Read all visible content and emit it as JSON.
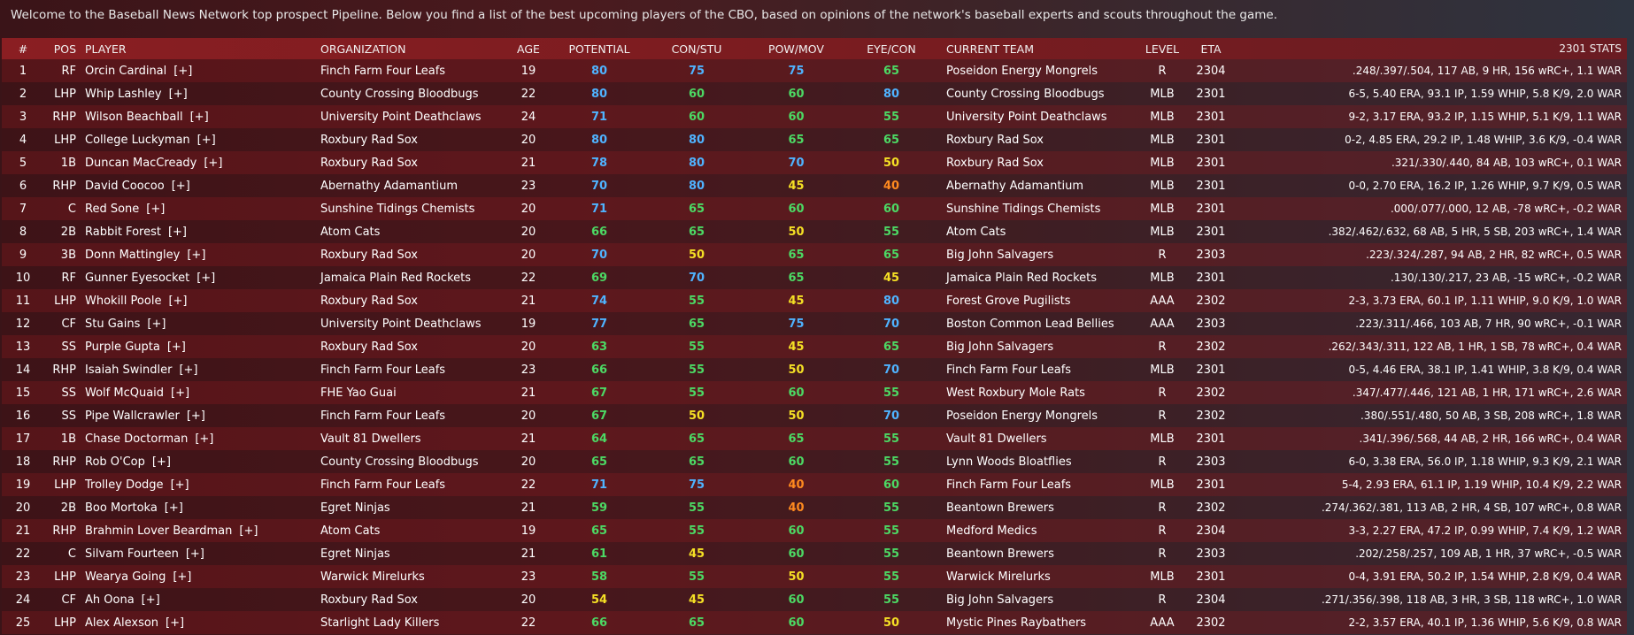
{
  "intro": "Welcome to the Baseball News Network top prospect Pipeline. Below you find a list of the best upcoming players of the CBO, based on opinions of the network's baseball experts and scouts throughout the game.",
  "columns": {
    "num": "#",
    "pos": "POS",
    "player": "PLAYER",
    "org": "ORGANIZATION",
    "age": "AGE",
    "potential": "POTENTIAL",
    "con_stu": "CON/STU",
    "pow_mov": "POW/MOV",
    "eye_con": "EYE/CON",
    "team": "CURRENT TEAM",
    "level": "LEVEL",
    "eta": "ETA",
    "stats": "2301 STATS"
  },
  "expand_label": "[+]",
  "rating_colors": {
    "80": "#4fb3ff",
    "75": "#4fb3ff",
    "70": "#4fb3ff",
    "65": "#4cd964",
    "60": "#4cd964",
    "55": "#4cd964",
    "50": "#f5e025",
    "45": "#f5e025",
    "40": "#ff8a1f"
  },
  "players": [
    {
      "num": "1",
      "pos": "RF",
      "name": "Orcin Cardinal",
      "org": "Finch Farm Four Leafs",
      "age": "19",
      "pot": "80",
      "con": "75",
      "pow": "75",
      "eye": "65",
      "team": "Poseidon Energy Mongrels",
      "level": "R",
      "eta": "2304",
      "stats": ".248/.397/.504, 117 AB, 9 HR, 156 wRC+, 1.1 WAR"
    },
    {
      "num": "2",
      "pos": "LHP",
      "name": "Whip Lashley",
      "org": "County Crossing Bloodbugs",
      "age": "22",
      "pot": "80",
      "con": "60",
      "pow": "60",
      "eye": "80",
      "team": "County Crossing Bloodbugs",
      "level": "MLB",
      "eta": "2301",
      "stats": "6-5, 5.40 ERA, 93.1 IP, 1.59 WHIP, 5.8 K/9, 2.0 WAR"
    },
    {
      "num": "3",
      "pos": "RHP",
      "name": "Wilson Beachball",
      "org": "University Point Deathclaws",
      "age": "24",
      "pot": "71",
      "con": "60",
      "pow": "60",
      "eye": "55",
      "team": "University Point Deathclaws",
      "level": "MLB",
      "eta": "2301",
      "stats": "9-2, 3.17 ERA, 93.2 IP, 1.15 WHIP, 5.1 K/9, 1.1 WAR"
    },
    {
      "num": "4",
      "pos": "LHP",
      "name": "College Luckyman",
      "org": "Roxbury Rad Sox",
      "age": "20",
      "pot": "80",
      "con": "80",
      "pow": "65",
      "eye": "65",
      "team": "Roxbury Rad Sox",
      "level": "MLB",
      "eta": "2301",
      "stats": "0-2, 4.85 ERA, 29.2 IP, 1.48 WHIP, 3.6 K/9, -0.4 WAR"
    },
    {
      "num": "5",
      "pos": "1B",
      "name": "Duncan MacCready",
      "org": "Roxbury Rad Sox",
      "age": "21",
      "pot": "78",
      "con": "80",
      "pow": "70",
      "eye": "50",
      "team": "Roxbury Rad Sox",
      "level": "MLB",
      "eta": "2301",
      "stats": ".321/.330/.440, 84 AB, 103 wRC+, 0.1 WAR"
    },
    {
      "num": "6",
      "pos": "RHP",
      "name": "David Coocoo",
      "org": "Abernathy Adamantium",
      "age": "23",
      "pot": "70",
      "con": "80",
      "pow": "45",
      "eye": "40",
      "team": "Abernathy Adamantium",
      "level": "MLB",
      "eta": "2301",
      "stats": "0-0, 2.70 ERA, 16.2 IP, 1.26 WHIP, 9.7 K/9, 0.5 WAR"
    },
    {
      "num": "7",
      "pos": "C",
      "name": "Red Sone",
      "org": "Sunshine Tidings Chemists",
      "age": "20",
      "pot": "71",
      "con": "65",
      "pow": "60",
      "eye": "60",
      "team": "Sunshine Tidings Chemists",
      "level": "MLB",
      "eta": "2301",
      "stats": ".000/.077/.000, 12 AB, -78 wRC+, -0.2 WAR"
    },
    {
      "num": "8",
      "pos": "2B",
      "name": "Rabbit Forest",
      "org": "Atom Cats",
      "age": "20",
      "pot": "66",
      "con": "65",
      "pow": "50",
      "eye": "55",
      "team": "Atom Cats",
      "level": "MLB",
      "eta": "2301",
      "stats": ".382/.462/.632, 68 AB, 5 HR, 5 SB, 203 wRC+, 1.4 WAR"
    },
    {
      "num": "9",
      "pos": "3B",
      "name": "Donn Mattingley",
      "org": "Roxbury Rad Sox",
      "age": "20",
      "pot": "70",
      "con": "50",
      "pow": "65",
      "eye": "65",
      "team": "Big John Salvagers",
      "level": "R",
      "eta": "2303",
      "stats": ".223/.324/.287, 94 AB, 2 HR, 82 wRC+, 0.5 WAR"
    },
    {
      "num": "10",
      "pos": "RF",
      "name": "Gunner Eyesocket",
      "org": "Jamaica Plain Red Rockets",
      "age": "22",
      "pot": "69",
      "con": "70",
      "pow": "65",
      "eye": "45",
      "team": "Jamaica Plain Red Rockets",
      "level": "MLB",
      "eta": "2301",
      "stats": ".130/.130/.217, 23 AB, -15 wRC+, -0.2 WAR"
    },
    {
      "num": "11",
      "pos": "LHP",
      "name": "Whokill Poole",
      "org": "Roxbury Rad Sox",
      "age": "21",
      "pot": "74",
      "con": "55",
      "pow": "45",
      "eye": "80",
      "team": "Forest Grove Pugilists",
      "level": "AAA",
      "eta": "2302",
      "stats": "2-3, 3.73 ERA, 60.1 IP, 1.11 WHIP, 9.0 K/9, 1.0 WAR"
    },
    {
      "num": "12",
      "pos": "CF",
      "name": "Stu Gains",
      "org": "University Point Deathclaws",
      "age": "19",
      "pot": "77",
      "con": "65",
      "pow": "75",
      "eye": "70",
      "team": "Boston Common Lead Bellies",
      "level": "AAA",
      "eta": "2303",
      "stats": ".223/.311/.466, 103 AB, 7 HR, 90 wRC+, -0.1 WAR"
    },
    {
      "num": "13",
      "pos": "SS",
      "name": "Purple Gupta",
      "org": "Roxbury Rad Sox",
      "age": "20",
      "pot": "63",
      "con": "55",
      "pow": "45",
      "eye": "65",
      "team": "Big John Salvagers",
      "level": "R",
      "eta": "2302",
      "stats": ".262/.343/.311, 122 AB, 1 HR, 1 SB, 78 wRC+, 0.4 WAR"
    },
    {
      "num": "14",
      "pos": "RHP",
      "name": "Isaiah Swindler",
      "org": "Finch Farm Four Leafs",
      "age": "23",
      "pot": "66",
      "con": "55",
      "pow": "50",
      "eye": "70",
      "team": "Finch Farm Four Leafs",
      "level": "MLB",
      "eta": "2301",
      "stats": "0-5, 4.46 ERA, 38.1 IP, 1.41 WHIP, 3.8 K/9, 0.4 WAR"
    },
    {
      "num": "15",
      "pos": "SS",
      "name": "Wolf McQuaid",
      "org": "FHE Yao Guai",
      "age": "21",
      "pot": "67",
      "con": "55",
      "pow": "60",
      "eye": "55",
      "team": "West Roxbury Mole Rats",
      "level": "R",
      "eta": "2302",
      "stats": ".347/.477/.446, 121 AB, 1 HR, 171 wRC+, 2.6 WAR"
    },
    {
      "num": "16",
      "pos": "SS",
      "name": "Pipe Wallcrawler",
      "org": "Finch Farm Four Leafs",
      "age": "20",
      "pot": "67",
      "con": "50",
      "pow": "50",
      "eye": "70",
      "team": "Poseidon Energy Mongrels",
      "level": "R",
      "eta": "2302",
      "stats": ".380/.551/.480, 50 AB, 3 SB, 208 wRC+, 1.8 WAR"
    },
    {
      "num": "17",
      "pos": "1B",
      "name": "Chase Doctorman",
      "org": "Vault 81 Dwellers",
      "age": "21",
      "pot": "64",
      "con": "65",
      "pow": "65",
      "eye": "55",
      "team": "Vault 81 Dwellers",
      "level": "MLB",
      "eta": "2301",
      "stats": ".341/.396/.568, 44 AB, 2 HR, 166 wRC+, 0.4 WAR"
    },
    {
      "num": "18",
      "pos": "RHP",
      "name": "Rob O'Cop",
      "org": "County Crossing Bloodbugs",
      "age": "20",
      "pot": "65",
      "con": "65",
      "pow": "60",
      "eye": "55",
      "team": "Lynn Woods Bloatflies",
      "level": "R",
      "eta": "2303",
      "stats": "6-0, 3.38 ERA, 56.0 IP, 1.18 WHIP, 9.3 K/9, 2.1 WAR"
    },
    {
      "num": "19",
      "pos": "LHP",
      "name": "Trolley Dodge",
      "org": "Finch Farm Four Leafs",
      "age": "22",
      "pot": "71",
      "con": "75",
      "pow": "40",
      "eye": "60",
      "team": "Finch Farm Four Leafs",
      "level": "MLB",
      "eta": "2301",
      "stats": "5-4, 2.93 ERA, 61.1 IP, 1.19 WHIP, 10.4 K/9, 2.2 WAR"
    },
    {
      "num": "20",
      "pos": "2B",
      "name": "Boo Mortoka",
      "org": "Egret Ninjas",
      "age": "21",
      "pot": "59",
      "con": "55",
      "pow": "40",
      "eye": "55",
      "team": "Beantown Brewers",
      "level": "R",
      "eta": "2302",
      "stats": ".274/.362/.381, 113 AB, 2 HR, 4 SB, 107 wRC+, 0.8 WAR"
    },
    {
      "num": "21",
      "pos": "RHP",
      "name": "Brahmin Lover Beardman",
      "org": "Atom Cats",
      "age": "19",
      "pot": "65",
      "con": "55",
      "pow": "60",
      "eye": "55",
      "team": "Medford Medics",
      "level": "R",
      "eta": "2304",
      "stats": "3-3, 2.27 ERA, 47.2 IP, 0.99 WHIP, 7.4 K/9, 1.2 WAR"
    },
    {
      "num": "22",
      "pos": "C",
      "name": "Silvam Fourteen",
      "org": "Egret Ninjas",
      "age": "21",
      "pot": "61",
      "con": "45",
      "pow": "60",
      "eye": "55",
      "team": "Beantown Brewers",
      "level": "R",
      "eta": "2303",
      "stats": ".202/.258/.257, 109 AB, 1 HR, 37 wRC+, -0.5 WAR"
    },
    {
      "num": "23",
      "pos": "LHP",
      "name": "Wearya Going",
      "org": "Warwick Mirelurks",
      "age": "23",
      "pot": "58",
      "con": "55",
      "pow": "50",
      "eye": "55",
      "team": "Warwick Mirelurks",
      "level": "MLB",
      "eta": "2301",
      "stats": "0-4, 3.91 ERA, 50.2 IP, 1.54 WHIP, 2.8 K/9, 0.4 WAR"
    },
    {
      "num": "24",
      "pos": "CF",
      "name": "Ah Oona",
      "org": "Roxbury Rad Sox",
      "age": "20",
      "pot": "54",
      "con": "45",
      "pow": "60",
      "eye": "55",
      "team": "Big John Salvagers",
      "level": "R",
      "eta": "2304",
      "stats": ".271/.356/.398, 118 AB, 3 HR, 3 SB, 118 wRC+, 1.0 WAR"
    },
    {
      "num": "25",
      "pos": "LHP",
      "name": "Alex Alexson",
      "org": "Starlight Lady Killers",
      "age": "22",
      "pot": "66",
      "con": "65",
      "pow": "60",
      "eye": "50",
      "team": "Mystic Pines Raybathers",
      "level": "AAA",
      "eta": "2302",
      "stats": "2-2, 3.57 ERA, 40.1 IP, 1.36 WHIP, 5.6 K/9, 0.8 WAR"
    }
  ]
}
